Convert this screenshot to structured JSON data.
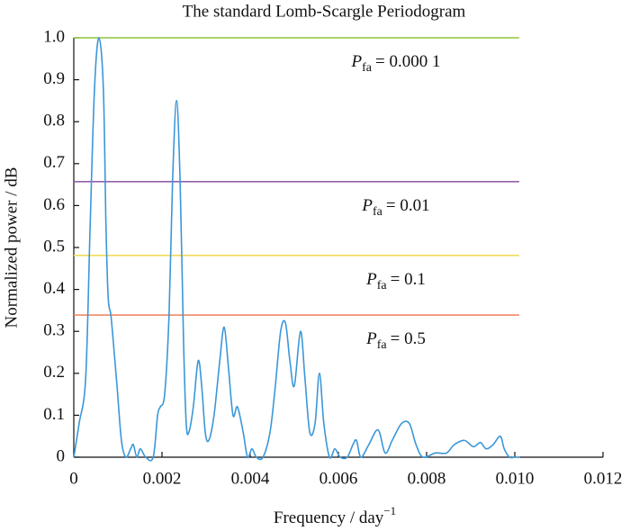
{
  "chart_data": {
    "type": "line",
    "title": "The standard Lomb-Scargle Periodogram",
    "x_label": {
      "text": "Frequency / day",
      "superscript": "−1"
    },
    "y_label": "Normalized power / dB",
    "xlim": [
      0,
      0.012
    ],
    "xticks": [
      0,
      0.002,
      0.004,
      0.006,
      0.008,
      {
        "value": 0.01,
        "label": "0.010"
      },
      0.012
    ],
    "ylim": [
      0,
      1
    ],
    "yticks": [
      0,
      0.1,
      0.2,
      0.3,
      0.4,
      0.5,
      0.6,
      0.7,
      0.8,
      0.9,
      {
        "value": 1,
        "label": "1.0"
      }
    ],
    "grid": false,
    "series": [
      {
        "color": "#3a97d8",
        "x": [
          0,
          0.00012,
          0.00027,
          0.00037,
          0.00047,
          0.00057,
          0.00067,
          0.00073,
          0.00078,
          0.00084,
          0.0009,
          0.00098,
          0.00108,
          0.00118,
          0.00129,
          0.00135,
          0.00143,
          0.00151,
          0.00163,
          0.0018,
          0.0019,
          0.00196,
          0.00206,
          0.00216,
          0.00224,
          0.00233,
          0.00241,
          0.00249,
          0.00255,
          0.00261,
          0.00271,
          0.00282,
          0.0029,
          0.00298,
          0.00306,
          0.00318,
          0.00331,
          0.00341,
          0.00351,
          0.00361,
          0.00371,
          0.00384,
          0.00394,
          0.00404,
          0.00414,
          0.00429,
          0.00445,
          0.00457,
          0.00469,
          0.0048,
          0.0049,
          0.005,
          0.00514,
          0.00524,
          0.00535,
          0.00547,
          0.00557,
          0.00567,
          0.0058,
          0.00592,
          0.00604,
          0.0062,
          0.00633,
          0.00641,
          0.00651,
          0.00669,
          0.0069,
          0.00706,
          0.00722,
          0.00743,
          0.00761,
          0.00776,
          0.00792,
          0.0082,
          0.00845,
          0.00863,
          0.00886,
          0.00906,
          0.00922,
          0.00935,
          0.00951,
          0.00967,
          0.00976,
          0.00988,
          0.01,
          0.01012
        ],
        "values": [
          0,
          0.08,
          0.19,
          0.55,
          0.88,
          1.0,
          0.88,
          0.55,
          0.38,
          0.34,
          0.27,
          0.17,
          0.04,
          0,
          0.02,
          0.03,
          0,
          0.02,
          0,
          0,
          0.1,
          0.12,
          0.15,
          0.34,
          0.66,
          0.85,
          0.66,
          0.27,
          0.08,
          0.06,
          0.12,
          0.23,
          0.17,
          0.06,
          0.04,
          0.1,
          0.23,
          0.31,
          0.21,
          0.1,
          0.12,
          0.06,
          0,
          0.02,
          0,
          0,
          0.06,
          0.17,
          0.3,
          0.32,
          0.23,
          0.17,
          0.3,
          0.19,
          0.06,
          0.08,
          0.2,
          0.08,
          0,
          0.02,
          0,
          0,
          0.03,
          0.04,
          0,
          0.03,
          0.065,
          0.01,
          0.04,
          0.08,
          0.08,
          0.03,
          0,
          0.01,
          0.01,
          0.03,
          0.04,
          0.025,
          0.035,
          0.02,
          0.03,
          0.05,
          0.02,
          0,
          0,
          0
        ]
      }
    ],
    "threshold_xrange": [
      0,
      0.0101
    ],
    "thresholds": [
      {
        "value": 1.0,
        "color": "#8dc63f",
        "label": {
          "symbol": "P",
          "subscript": "fa",
          "text": "= 0.000 1"
        }
      },
      {
        "value": 0.657,
        "color": "#9460a8",
        "label": {
          "symbol": "P",
          "subscript": "fa",
          "text": "= 0.01"
        }
      },
      {
        "value": 0.481,
        "color": "#f2dc5a",
        "label": {
          "symbol": "P",
          "subscript": "fa",
          "text": "= 0.1"
        }
      },
      {
        "value": 0.339,
        "color": "#f08a68",
        "label": {
          "symbol": "P",
          "subscript": "fa",
          "text": "= 0.5"
        }
      }
    ]
  }
}
